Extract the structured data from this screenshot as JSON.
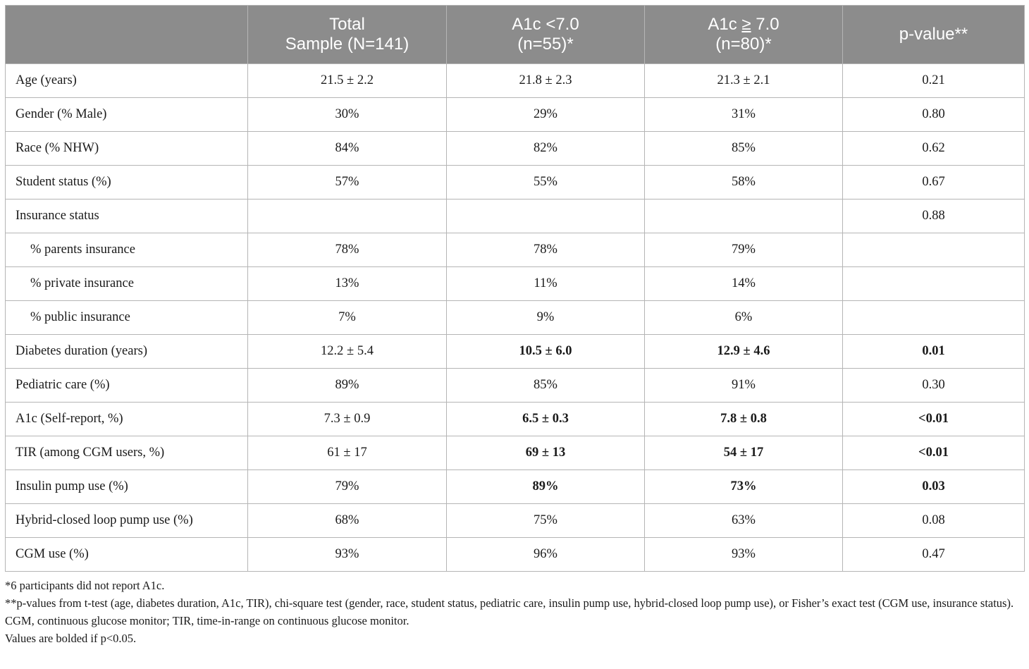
{
  "table": {
    "headers": [
      {
        "lines": [
          ""
        ]
      },
      {
        "lines": [
          "Total",
          "Sample (N=141)"
        ]
      },
      {
        "lines": [
          "A1c <7.0",
          "(n=55)*"
        ]
      },
      {
        "pre": "A1c ",
        "ul": "≥",
        "post": " 7.0",
        "line2": "(n=80)*"
      },
      {
        "lines": [
          "p-value**"
        ]
      }
    ],
    "rows": [
      {
        "label": "Age (years)",
        "cells": [
          "21.5 ± 2.2",
          "21.8 ± 2.3",
          "21.3 ± 2.1",
          "0.21"
        ],
        "bold": [
          false,
          false,
          false,
          false
        ]
      },
      {
        "label": "Gender (% Male)",
        "cells": [
          "30%",
          "29%",
          "31%",
          "0.80"
        ],
        "bold": [
          false,
          false,
          false,
          false
        ]
      },
      {
        "label": "Race (% NHW)",
        "cells": [
          "84%",
          "82%",
          "85%",
          "0.62"
        ],
        "bold": [
          false,
          false,
          false,
          false
        ]
      },
      {
        "label": "Student status (%)",
        "cells": [
          "57%",
          "55%",
          "58%",
          "0.67"
        ],
        "bold": [
          false,
          false,
          false,
          false
        ]
      },
      {
        "label": "Insurance status",
        "cells": [
          "",
          "",
          "",
          "0.88"
        ],
        "bold": [
          false,
          false,
          false,
          false
        ]
      },
      {
        "label": "% parents insurance",
        "sub": true,
        "cells": [
          "78%",
          "78%",
          "79%",
          ""
        ],
        "bold": [
          false,
          false,
          false,
          false
        ]
      },
      {
        "label": "% private insurance",
        "sub": true,
        "cells": [
          "13%",
          "11%",
          "14%",
          ""
        ],
        "bold": [
          false,
          false,
          false,
          false
        ]
      },
      {
        "label": "% public insurance",
        "sub": true,
        "cells": [
          "7%",
          "9%",
          "6%",
          ""
        ],
        "bold": [
          false,
          false,
          false,
          false
        ]
      },
      {
        "label": "Diabetes duration (years)",
        "cells": [
          "12.2 ± 5.4",
          "10.5 ± 6.0",
          "12.9 ± 4.6",
          "0.01"
        ],
        "bold": [
          false,
          true,
          true,
          true
        ]
      },
      {
        "label": "Pediatric care (%)",
        "cells": [
          "89%",
          "85%",
          "91%",
          "0.30"
        ],
        "bold": [
          false,
          false,
          false,
          false
        ]
      },
      {
        "label": "A1c (Self-report, %)",
        "cells": [
          "7.3 ± 0.9",
          "6.5 ± 0.3",
          "7.8 ± 0.8",
          "<0.01"
        ],
        "bold": [
          false,
          true,
          true,
          true
        ]
      },
      {
        "label": "TIR (among CGM users, %)",
        "cells": [
          "61 ± 17",
          "69 ± 13",
          "54 ± 17",
          "<0.01"
        ],
        "bold": [
          false,
          true,
          true,
          true
        ]
      },
      {
        "label": "Insulin pump use (%)",
        "cells": [
          "79%",
          "89%",
          "73%",
          "0.03"
        ],
        "bold": [
          false,
          true,
          true,
          true
        ]
      },
      {
        "label": "Hybrid-closed loop pump use (%)",
        "cells": [
          "68%",
          "75%",
          "63%",
          "0.08"
        ],
        "bold": [
          false,
          false,
          false,
          false
        ]
      },
      {
        "label": "CGM use (%)",
        "cells": [
          "93%",
          "96%",
          "93%",
          "0.47"
        ],
        "bold": [
          false,
          false,
          false,
          false
        ]
      }
    ]
  },
  "footnotes": [
    "*6 participants did not report A1c.",
    "**p-values from t-test (age, diabetes duration, A1c, TIR), chi-square test (gender, race, student status, pediatric care, insulin pump use, hybrid-closed loop pump use), or Fisher’s exact test (CGM use, insurance status).",
    "CGM, continuous glucose monitor; TIR, time-in-range on continuous glucose monitor.",
    "Values are bolded if p<0.05."
  ]
}
